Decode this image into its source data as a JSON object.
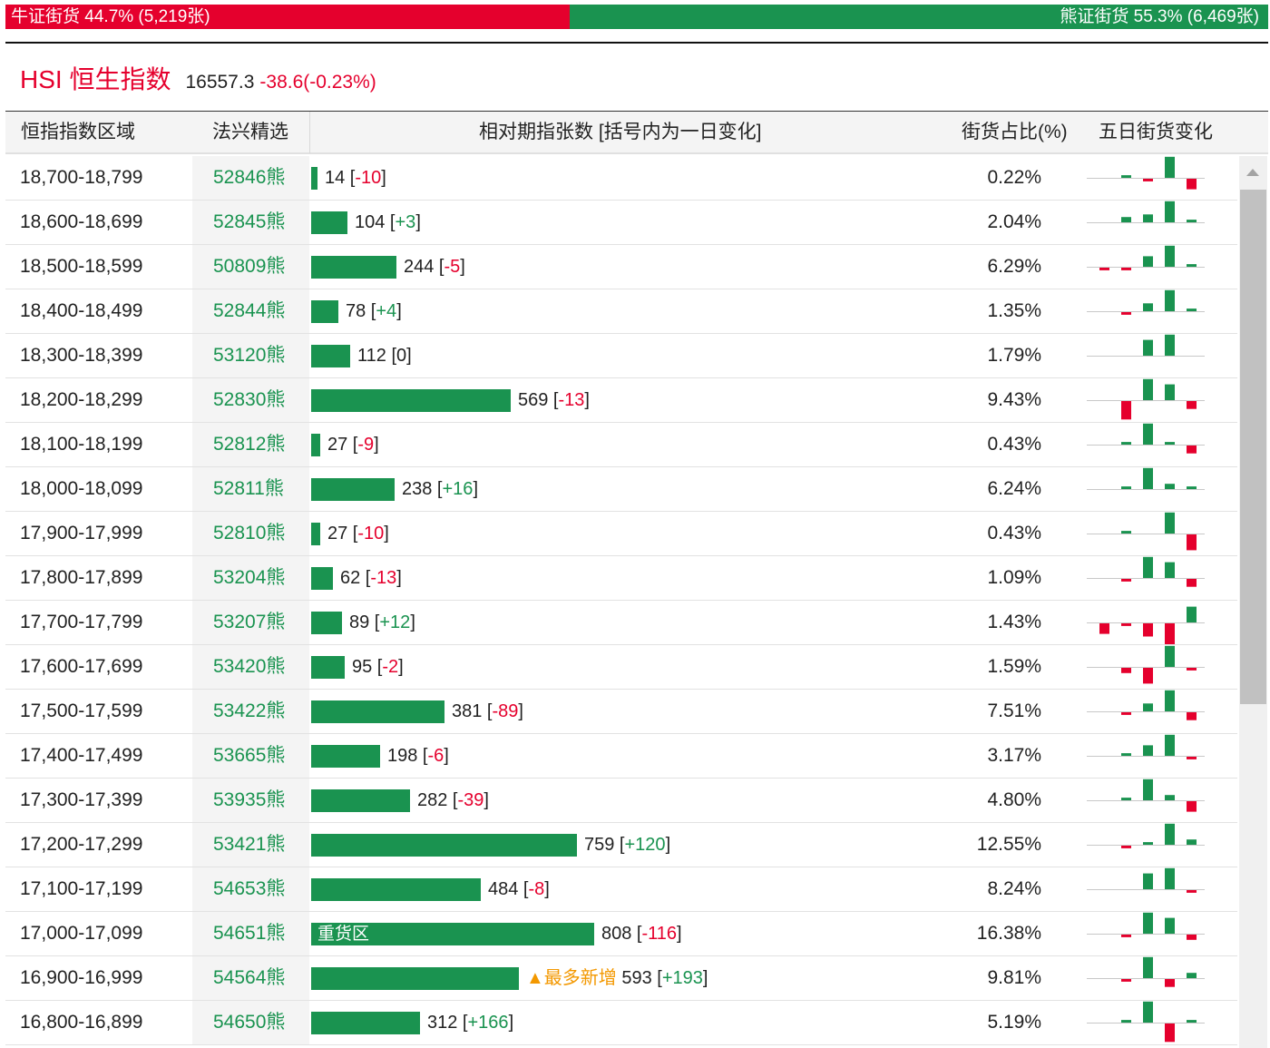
{
  "summary": {
    "bull_label": "牛证街货 44.7% (5,219张)",
    "bear_label": "熊证街货 55.3% (6,469张)",
    "bull_share": 0.447,
    "bull_color": "#e5002d",
    "bear_color": "#1a9350"
  },
  "index": {
    "name": "HSI 恒生指数",
    "price": "16557.3",
    "change": "-38.6(-0.23%)"
  },
  "columns": {
    "range": "恒指指数区域",
    "pick": "法兴精选",
    "count": "相对期指张数 [括号内为一日变化]",
    "share": "街货占比(%)",
    "five_day": "五日街货变化"
  },
  "rows": [
    {
      "range": "18,700-18,799",
      "pick": "52846熊",
      "count": 14,
      "count_label": "14",
      "delta": "-10",
      "share": "0.22%",
      "five_day": [
        0,
        1,
        -1,
        8,
        -4
      ]
    },
    {
      "range": "18,600-18,699",
      "pick": "52845熊",
      "count": 104,
      "count_label": "104",
      "delta": "+3",
      "share": "2.04%",
      "five_day": [
        0,
        2,
        3,
        8,
        1
      ]
    },
    {
      "range": "18,500-18,599",
      "pick": "50809熊",
      "count": 244,
      "count_label": "244",
      "delta": "-5",
      "share": "6.29%",
      "five_day": [
        -1,
        -1,
        4,
        8,
        1
      ]
    },
    {
      "range": "18,400-18,499",
      "pick": "52844熊",
      "count": 78,
      "count_label": "78",
      "delta": "+4",
      "share": "1.35%",
      "five_day": [
        0,
        -1,
        3,
        8,
        1
      ]
    },
    {
      "range": "18,300-18,399",
      "pick": "53120熊",
      "count": 112,
      "count_label": "112",
      "delta": "0",
      "share": "1.79%",
      "five_day": [
        0,
        0,
        6,
        8,
        0
      ]
    },
    {
      "range": "18,200-18,299",
      "pick": "52830熊",
      "count": 569,
      "count_label": "569",
      "delta": "-13",
      "share": "9.43%",
      "five_day": [
        0,
        -7,
        8,
        6,
        -3
      ]
    },
    {
      "range": "18,100-18,199",
      "pick": "52812熊",
      "count": 27,
      "count_label": "27",
      "delta": "-9",
      "share": "0.43%",
      "five_day": [
        0,
        1,
        8,
        1,
        -3
      ]
    },
    {
      "range": "18,000-18,099",
      "pick": "52811熊",
      "count": 238,
      "count_label": "238",
      "delta": "+16",
      "share": "6.24%",
      "five_day": [
        0,
        1,
        8,
        2,
        1
      ]
    },
    {
      "range": "17,900-17,999",
      "pick": "52810熊",
      "count": 27,
      "count_label": "27",
      "delta": "-10",
      "share": "0.43%",
      "five_day": [
        0,
        1,
        0,
        8,
        -6
      ]
    },
    {
      "range": "17,800-17,899",
      "pick": "53204熊",
      "count": 62,
      "count_label": "62",
      "delta": "-13",
      "share": "1.09%",
      "five_day": [
        0,
        -1,
        8,
        6,
        -3
      ]
    },
    {
      "range": "17,700-17,799",
      "pick": "53207熊",
      "count": 89,
      "count_label": "89",
      "delta": "+12",
      "share": "1.43%",
      "five_day": [
        -4,
        -1,
        -5,
        -8,
        6
      ]
    },
    {
      "range": "17,600-17,699",
      "pick": "53420熊",
      "count": 95,
      "count_label": "95",
      "delta": "-2",
      "share": "1.59%",
      "five_day": [
        0,
        -2,
        -6,
        8,
        -1
      ]
    },
    {
      "range": "17,500-17,599",
      "pick": "53422熊",
      "count": 381,
      "count_label": "381",
      "delta": "-89",
      "share": "7.51%",
      "five_day": [
        0,
        -1,
        3,
        8,
        -3
      ]
    },
    {
      "range": "17,400-17,499",
      "pick": "53665熊",
      "count": 198,
      "count_label": "198",
      "delta": "-6",
      "share": "3.17%",
      "five_day": [
        0,
        1,
        4,
        8,
        -1
      ]
    },
    {
      "range": "17,300-17,399",
      "pick": "53935熊",
      "count": 282,
      "count_label": "282",
      "delta": "-39",
      "share": "4.80%",
      "five_day": [
        0,
        1,
        8,
        2,
        -4
      ]
    },
    {
      "range": "17,200-17,299",
      "pick": "53421熊",
      "count": 759,
      "count_label": "759",
      "delta": "+120",
      "share": "12.55%",
      "five_day": [
        0,
        -1,
        1,
        8,
        2
      ]
    },
    {
      "range": "17,100-17,199",
      "pick": "54653熊",
      "count": 484,
      "count_label": "484",
      "delta": "-8",
      "share": "8.24%",
      "five_day": [
        0,
        0,
        6,
        8,
        -1
      ]
    },
    {
      "range": "17,000-17,099",
      "pick": "54651熊",
      "count": 808,
      "count_label": "808",
      "delta": "-116",
      "share": "16.38%",
      "five_day": [
        0,
        -1,
        8,
        6,
        -2
      ],
      "bar_tag": "重货区"
    },
    {
      "range": "16,900-16,999",
      "pick": "54564熊",
      "count": 593,
      "count_label": "593",
      "delta": "+193",
      "share": "9.81%",
      "five_day": [
        0,
        -1,
        8,
        -3,
        2
      ],
      "side_tag": "▲最多新增"
    },
    {
      "range": "16,800-16,899",
      "pick": "54650熊",
      "count": 312,
      "count_label": "312",
      "delta": "+166",
      "share": "5.19%",
      "five_day": [
        0,
        1,
        8,
        -7,
        1
      ]
    }
  ]
}
